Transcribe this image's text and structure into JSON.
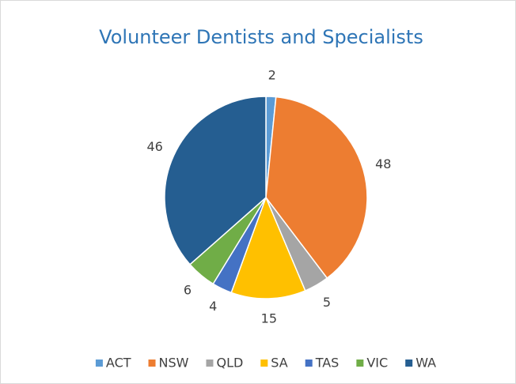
{
  "chart_data": {
    "type": "pie",
    "title": "Volunteer Dentists and Specialists",
    "categories": [
      "ACT",
      "NSW",
      "QLD",
      "SA",
      "TAS",
      "VIC",
      "WA"
    ],
    "values": [
      2,
      48,
      5,
      15,
      4,
      6,
      46
    ],
    "colors": [
      "#5b9bd5",
      "#ed7d31",
      "#a5a5a5",
      "#ffc000",
      "#4472c4",
      "#70ad47",
      "#255e91"
    ],
    "legend": "bottom"
  }
}
